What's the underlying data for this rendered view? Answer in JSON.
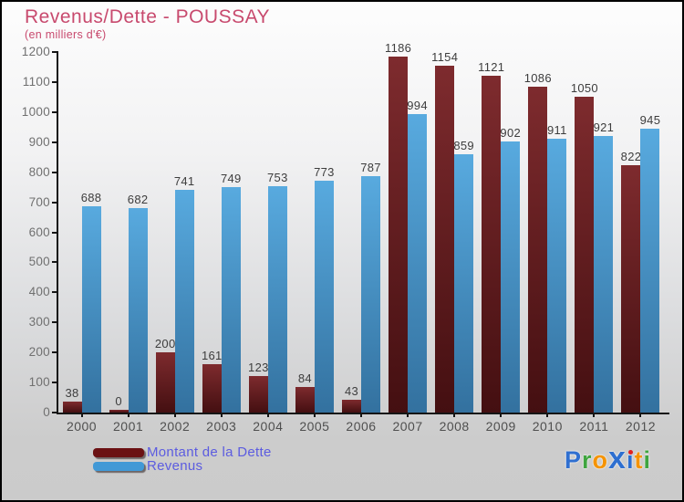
{
  "title": "Revenus/Dette - POUSSAY",
  "subtitle": "(en milliers d'€)",
  "colors": {
    "title_text": "#c84a6e",
    "axis": "#151515",
    "value_label": "#3d3d3d",
    "ytick_label": "#707070",
    "year_label": "#4f4f4f",
    "legend_text": "#5c5ce0",
    "background_top": "#fdfdfd",
    "background_bottom": "#cbcbcb"
  },
  "chart_data": {
    "type": "bar",
    "categories": [
      "2000",
      "2001",
      "2002",
      "2003",
      "2004",
      "2005",
      "2006",
      "2007",
      "2008",
      "2009",
      "2010",
      "2011",
      "2012"
    ],
    "series": [
      {
        "name": "Montant de la Dette",
        "color_top": "#7e2b2e",
        "color_bottom": "#440f11",
        "legend_color": "#6b1113",
        "values": [
          38,
          0,
          200,
          161,
          123,
          84,
          43,
          1186,
          1154,
          1121,
          1086,
          1050,
          822
        ]
      },
      {
        "name": "Revenus",
        "color_top": "#58aadf",
        "color_bottom": "#33719f",
        "legend_color": "#4299d6",
        "values": [
          688,
          682,
          741,
          749,
          753,
          773,
          787,
          994,
          859,
          902,
          911,
          921,
          945
        ]
      }
    ],
    "ylim": [
      0,
      1200
    ],
    "ytick_step": 100,
    "yticks": [
      0,
      100,
      200,
      300,
      400,
      500,
      600,
      700,
      800,
      900,
      1000,
      1100,
      1200
    ],
    "grid": false,
    "value_labels": true,
    "legend_position": "bottom-left",
    "title": "Revenus/Dette - POUSSAY",
    "subtitle": "(en milliers d'€)"
  },
  "logo": {
    "name": "Proxiti",
    "letters": [
      {
        "ch": "P",
        "color": "#2f6fd0",
        "big": false
      },
      {
        "ch": "r",
        "color": "#3fa53f",
        "big": false
      },
      {
        "ch": "o",
        "color": "#f59300",
        "big": false
      },
      {
        "ch": "x",
        "color": "#2e6fd0",
        "big": true
      },
      {
        "ch": "i",
        "color": "#2e6fd0",
        "big": false,
        "dot": "#e02020"
      },
      {
        "ch": "t",
        "color": "#f59300",
        "big": false
      },
      {
        "ch": "i",
        "color": "#3fa53f",
        "big": false
      }
    ]
  }
}
